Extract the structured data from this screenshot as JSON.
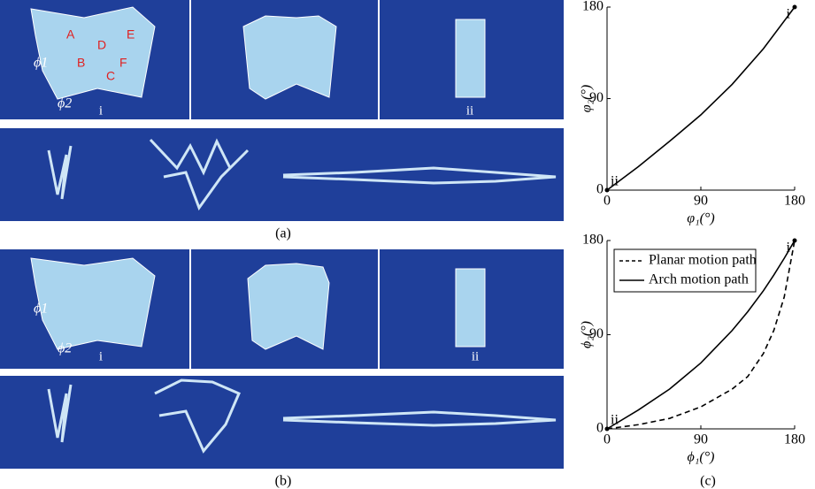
{
  "figure": {
    "panel_labels": [
      "(a)",
      "(b)",
      "(c)"
    ],
    "a_photo_top": {
      "faces": [
        "A",
        "B",
        "C",
        "D",
        "E",
        "F"
      ],
      "angles": [
        "ϕ1",
        "ϕ2"
      ],
      "states": [
        "i",
        "ii"
      ]
    },
    "b_photo_top": {
      "angles": [
        "ϕ1",
        "ϕ2"
      ],
      "states": [
        "i",
        "ii"
      ]
    }
  },
  "chart_data": [
    {
      "type": "line",
      "x": [
        0,
        30,
        60,
        90,
        120,
        150,
        180
      ],
      "values": [
        0,
        23,
        48,
        74,
        104,
        139,
        180
      ],
      "color": "#000000",
      "xlim": [
        0,
        180
      ],
      "ylim": [
        0,
        180
      ],
      "xticks": [
        0,
        90,
        180
      ],
      "yticks": [
        0,
        90,
        180
      ],
      "xlabel": "φ₁(°)",
      "ylabel": "φ₂(°)",
      "annotations": [
        {
          "text": "i",
          "x": 180,
          "y": 180
        },
        {
          "text": "ii",
          "x": 0,
          "y": 0
        }
      ]
    },
    {
      "type": "line",
      "x": [
        0,
        30,
        60,
        90,
        120,
        135,
        150,
        160,
        170,
        180
      ],
      "series": [
        {
          "name": "Planar motion path",
          "color": "#000000",
          "linestyle": "dashed",
          "values": [
            0,
            4,
            10,
            21,
            38,
            50,
            72,
            94,
            126,
            180
          ]
        },
        {
          "name": "Arch motion path",
          "color": "#000000",
          "linestyle": "solid",
          "values": [
            0,
            18,
            38,
            63,
            94,
            112,
            132,
            147,
            163,
            180
          ]
        }
      ],
      "xlim": [
        0,
        180
      ],
      "ylim": [
        0,
        180
      ],
      "xticks": [
        0,
        90,
        180
      ],
      "yticks": [
        0,
        90,
        180
      ],
      "xlabel": "ϕ₁(°)",
      "ylabel": "ϕ₂(°)",
      "legend": "upper-left",
      "annotations": [
        {
          "text": "i",
          "x": 180,
          "y": 180
        },
        {
          "text": "ii",
          "x": 0,
          "y": 0
        }
      ]
    }
  ]
}
